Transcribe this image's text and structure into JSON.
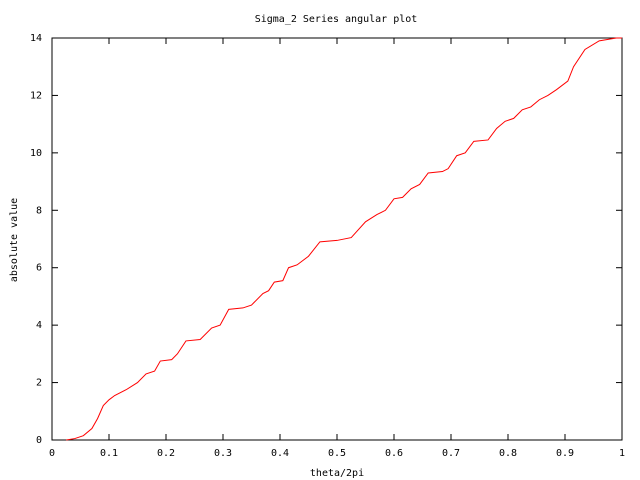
{
  "chart_data": {
    "type": "line",
    "title": "Sigma_2 Series angular plot",
    "x_label": "theta/2pi",
    "y_label": "absolute value",
    "x": [
      0.025,
      0.04,
      0.055,
      0.07,
      0.08,
      0.09,
      0.1,
      0.11,
      0.13,
      0.15,
      0.165,
      0.18,
      0.19,
      0.21,
      0.22,
      0.235,
      0.26,
      0.28,
      0.295,
      0.31,
      0.335,
      0.35,
      0.37,
      0.38,
      0.39,
      0.405,
      0.415,
      0.43,
      0.45,
      0.47,
      0.5,
      0.525,
      0.55,
      0.57,
      0.585,
      0.6,
      0.615,
      0.63,
      0.645,
      0.66,
      0.685,
      0.695,
      0.71,
      0.725,
      0.74,
      0.765,
      0.78,
      0.795,
      0.81,
      0.825,
      0.84,
      0.855,
      0.87,
      0.885,
      0.905,
      0.915,
      0.935,
      0.96,
      0.99,
      1.0
    ],
    "series": [
      {
        "color": "#ff0000",
        "values": [
          0,
          0.05,
          0.15,
          0.4,
          0.75,
          1.2,
          1.4,
          1.55,
          1.75,
          2.0,
          2.3,
          2.4,
          2.75,
          2.8,
          3.0,
          3.45,
          3.5,
          3.9,
          4.0,
          4.55,
          4.6,
          4.7,
          5.1,
          5.2,
          5.5,
          5.55,
          6.0,
          6.1,
          6.4,
          6.9,
          6.95,
          7.05,
          7.6,
          7.85,
          8.0,
          8.4,
          8.45,
          8.75,
          8.9,
          9.3,
          9.35,
          9.45,
          9.9,
          10.0,
          10.4,
          10.45,
          10.85,
          11.1,
          11.2,
          11.5,
          11.6,
          11.85,
          12.0,
          12.2,
          12.5,
          13.0,
          13.6,
          13.9,
          14.0,
          14.0
        ]
      }
    ],
    "xlim": [
      0,
      1
    ],
    "xticks": [
      0,
      0.1,
      0.2,
      0.3,
      0.4,
      0.5,
      0.6,
      0.7,
      0.8,
      0.9,
      1
    ],
    "ylim": [
      0,
      14
    ],
    "yticks": [
      0,
      2,
      4,
      6,
      8,
      10,
      12,
      14
    ],
    "grid": false
  }
}
